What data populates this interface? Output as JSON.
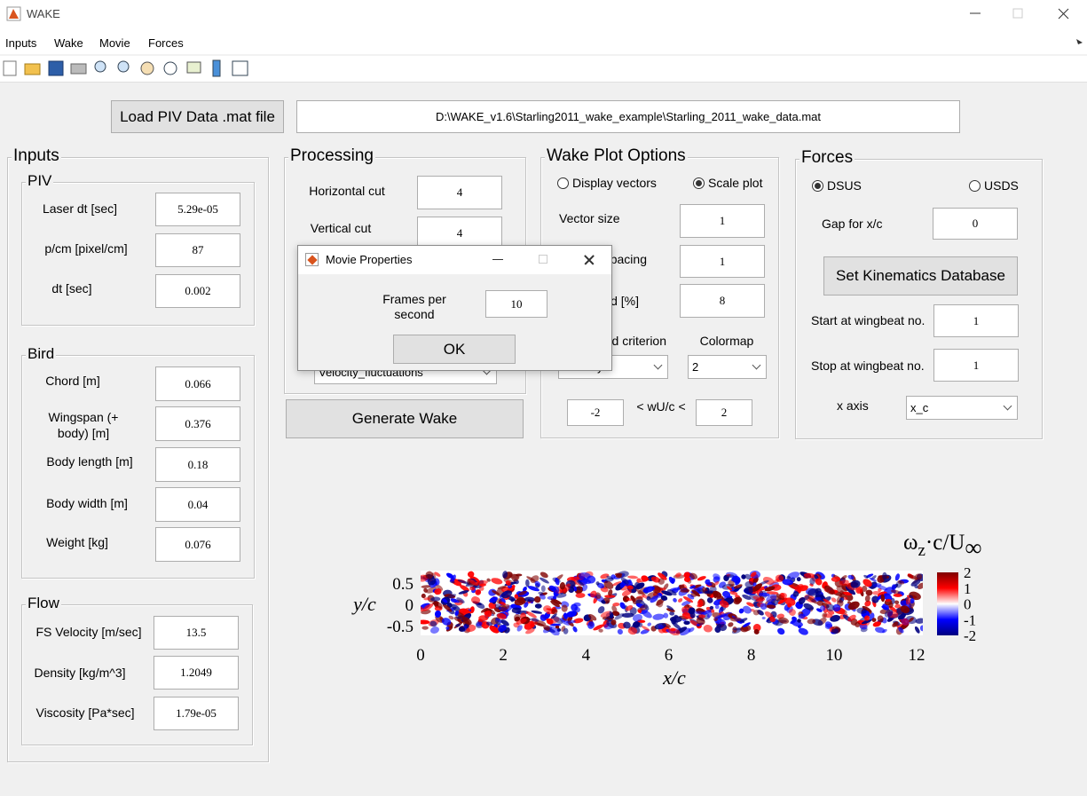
{
  "window": {
    "title": "WAKE"
  },
  "menu": [
    "Inputs",
    "Wake",
    "Movie",
    "Forces"
  ],
  "load_button": "Load PIV Data .mat file",
  "file_path": "D:\\WAKE_v1.6\\Starling2011_wake_example\\Starling_2011_wake_data.mat",
  "inputs": {
    "title": "Inputs",
    "piv": {
      "title": "PIV",
      "fields": [
        {
          "label": "Laser dt [sec]",
          "value": "5.29e-05"
        },
        {
          "label": "p/cm [pixel/cm]",
          "value": "87"
        },
        {
          "label": "dt [sec]",
          "value": "0.002"
        }
      ]
    },
    "bird": {
      "title": "Bird",
      "fields": [
        {
          "label": "Chord [m]",
          "value": "0.066"
        },
        {
          "label": "Wingspan (+ body) [m]",
          "value": "0.376"
        },
        {
          "label": "Body length [m]",
          "value": "0.18"
        },
        {
          "label": "Body width [m]",
          "value": "0.04"
        },
        {
          "label": "Weight [kg]",
          "value": "0.076"
        }
      ]
    },
    "flow": {
      "title": "Flow",
      "fields": [
        {
          "label": "FS Velocity [m/sec]",
          "value": "13.5"
        },
        {
          "label": "Density [kg/m^3]",
          "value": "1.2049"
        },
        {
          "label": "Viscosity [Pa*sec]",
          "value": "1.79e-05"
        }
      ]
    }
  },
  "processing": {
    "title": "Processing",
    "fields": [
      {
        "label": "Horizontal cut",
        "value": "4"
      },
      {
        "label": "Vertical cut",
        "value": "4"
      }
    ],
    "mode": "Velocity_fluctuations",
    "generate_button": "Generate Wake"
  },
  "wake_plot_options": {
    "title": "Wake Plot Options",
    "radios": [
      {
        "label": "Display vectors",
        "selected": false
      },
      {
        "label": "Scale plot",
        "selected": true
      }
    ],
    "fields": [
      {
        "label": "Vector size",
        "value": "1"
      },
      {
        "label": "pacing",
        "value": "1"
      },
      {
        "label": "d [%]",
        "value": "8"
      }
    ],
    "criterion_label": "d criterion",
    "criterion": "Vorticity",
    "colormap_label": "Colormap",
    "colormap": "2",
    "range_min": "-2",
    "range_label": "< wU/c <",
    "range_max": "2"
  },
  "forces": {
    "title": "Forces",
    "radios": [
      {
        "label": "DSUS",
        "selected": true
      },
      {
        "label": "USDS",
        "selected": false
      }
    ],
    "gap": {
      "label": "Gap for x/c",
      "value": "0"
    },
    "kinematics_button": "Set Kinematics Database",
    "start": {
      "label": "Start at wingbeat no.",
      "value": "1"
    },
    "stop": {
      "label": "Stop at wingbeat no.",
      "value": "1"
    },
    "x_axis": {
      "label": "x axis",
      "value": "x_c"
    }
  },
  "dialog": {
    "title": "Movie Properties",
    "label": "Frames per second",
    "value": "10",
    "ok": "OK"
  },
  "plot": {
    "type": "heatmap",
    "xlabel": "x/c",
    "ylabel": "y/c",
    "xlim": [
      0,
      12.15
    ],
    "ylim": [
      -0.71,
      0.81
    ],
    "xticks": [
      0,
      2,
      4,
      6,
      8,
      10,
      12
    ],
    "yticks": [
      0.5,
      0,
      -0.5
    ],
    "colormap": [
      "#00007f",
      "#0000ff",
      "#ffffff",
      "#ff0000",
      "#7f0000"
    ],
    "colorbar": {
      "lim": [
        -2,
        2
      ],
      "ticks": [
        2,
        1,
        0,
        -1,
        -2
      ],
      "label": {
        "symbol": "ω",
        "sub": "z",
        "rest": "·c/U",
        "sub2": "∞"
      }
    }
  }
}
